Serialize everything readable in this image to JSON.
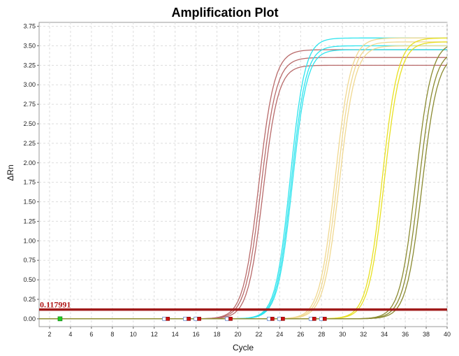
{
  "chart_data": {
    "type": "line",
    "title": "Amplification Plot",
    "xlabel": "Cycle",
    "ylabel": "ΔRn",
    "xlim": [
      1,
      40
    ],
    "ylim": [
      -0.1,
      3.8
    ],
    "x_ticks": [
      2,
      4,
      6,
      8,
      10,
      12,
      14,
      16,
      18,
      20,
      22,
      24,
      26,
      28,
      30,
      32,
      34,
      36,
      38,
      40
    ],
    "y_ticks": [
      0.0,
      0.25,
      0.5,
      0.75,
      1.0,
      1.25,
      1.5,
      1.75,
      2.0,
      2.25,
      2.5,
      2.75,
      3.0,
      3.25,
      3.5,
      3.75
    ],
    "y_tick_labels": [
      "0.00",
      "0.25",
      "0.50",
      "0.75",
      "1.00",
      "1.25",
      "1.50",
      "1.75",
      "2.00",
      "2.25",
      "2.50",
      "2.75",
      "3.00",
      "3.25",
      "3.50",
      "3.75"
    ],
    "grid": true,
    "threshold": {
      "value": 0.117991,
      "label": "0.117991",
      "color": "#a01a1a"
    },
    "series": [
      {
        "color": "#b86a6a",
        "midpoint": 22.0,
        "plateau": 3.45,
        "slope": 0.58
      },
      {
        "color": "#b86a6a",
        "midpoint": 22.2,
        "plateau": 3.35,
        "slope": 0.58
      },
      {
        "color": "#b86a6a",
        "midpoint": 22.4,
        "plateau": 3.25,
        "slope": 0.6
      },
      {
        "color": "#2ee4ee",
        "midpoint": 25.0,
        "plateau": 3.6,
        "slope": 0.62
      },
      {
        "color": "#2ee4ee",
        "midpoint": 25.1,
        "plateau": 3.5,
        "slope": 0.62
      },
      {
        "color": "#2ee4ee",
        "midpoint": 25.2,
        "plateau": 3.45,
        "slope": 0.62
      },
      {
        "color": "#f0d890",
        "midpoint": 29.3,
        "plateau": 3.6,
        "slope": 0.58
      },
      {
        "color": "#f0d890",
        "midpoint": 29.5,
        "plateau": 3.55,
        "slope": 0.58
      },
      {
        "color": "#f0d890",
        "midpoint": 29.7,
        "plateau": 3.5,
        "slope": 0.58
      },
      {
        "color": "#e8e020",
        "midpoint": 33.8,
        "plateau": 3.6,
        "slope": 0.58
      },
      {
        "color": "#e8e020",
        "midpoint": 34.0,
        "plateau": 3.55,
        "slope": 0.58
      },
      {
        "color": "#8a8a30",
        "midpoint": 37.0,
        "plateau": 3.55,
        "slope": 0.58
      },
      {
        "color": "#8a8a30",
        "midpoint": 37.3,
        "plateau": 3.45,
        "slope": 0.58
      },
      {
        "color": "#8a8a30",
        "midpoint": 37.6,
        "plateau": 3.4,
        "slope": 0.58
      }
    ],
    "baseline_markers": [
      {
        "start": 13,
        "end": 13.3
      },
      {
        "start": 15,
        "end": 15.3
      },
      {
        "start": 16,
        "end": 16.3
      },
      {
        "start": 19,
        "end": 19.3
      },
      {
        "start": 23,
        "end": 23.3
      },
      {
        "start": 24,
        "end": 24.3
      },
      {
        "start": 27,
        "end": 27.3
      },
      {
        "start": 28,
        "end": 28.3
      }
    ],
    "green_marker": {
      "x": 3
    }
  }
}
